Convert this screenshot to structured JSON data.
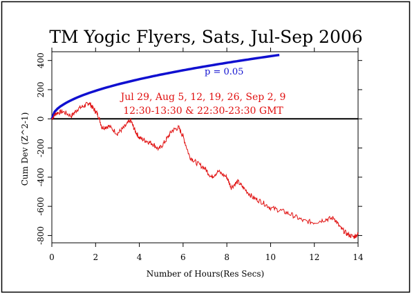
{
  "chart_data": {
    "type": "line",
    "title": "TM Yogic Flyers, Sats, Jul-Sep 2006",
    "xlabel": "Number of Hours(Res Secs)",
    "ylabel": "Cum Dev (Z^2-1)",
    "xlim": [
      0,
      14
    ],
    "ylim": [
      -850,
      460
    ],
    "xticks": [
      0,
      2,
      4,
      6,
      8,
      10,
      12,
      14
    ],
    "yticks": [
      -800,
      -600,
      -400,
      -200,
      0,
      200,
      400
    ],
    "grid": false,
    "reference_line": 0,
    "colors": {
      "data": "#e01010",
      "envelope": "#1010d0",
      "annotation": "#e01010",
      "baseline": "#000000"
    },
    "annotations": {
      "envelope_label": "p = 0.05",
      "dates": "Jul 29, Aug 5, 12, 19, 26, Sep 2, 9",
      "times": "12:30-13:30 & 22:30-23:30 GMT"
    },
    "series": [
      {
        "role": "envelope",
        "x": [
          0,
          0.1,
          0.25,
          0.5,
          1,
          1.5,
          2,
          3,
          4,
          5,
          6,
          7,
          8,
          9,
          10,
          10.4
        ],
        "values": [
          0,
          43,
          68,
          96,
          135,
          166,
          192,
          235,
          271,
          303,
          332,
          359,
          384,
          407,
          429,
          438
        ]
      },
      {
        "role": "data",
        "x": [
          0,
          0.2,
          0.5,
          0.9,
          1.2,
          1.5,
          1.7,
          1.9,
          2.1,
          2.3,
          2.6,
          3.0,
          3.3,
          3.6,
          3.8,
          4.0,
          4.3,
          4.6,
          4.9,
          5.2,
          5.5,
          5.8,
          6.0,
          6.3,
          6.6,
          7.0,
          7.3,
          7.6,
          8.0,
          8.2,
          8.5,
          8.8,
          9.2,
          9.6,
          10.0,
          10.5,
          11.0,
          11.5,
          12.0,
          12.5,
          12.9,
          13.2,
          13.5,
          13.8,
          14.0
        ],
        "values": [
          0,
          40,
          50,
          20,
          70,
          90,
          110,
          70,
          30,
          -60,
          -50,
          -100,
          -60,
          -10,
          -80,
          -130,
          -150,
          -170,
          -210,
          -150,
          -80,
          -60,
          -120,
          -260,
          -300,
          -340,
          -400,
          -360,
          -400,
          -470,
          -430,
          -480,
          -540,
          -570,
          -610,
          -630,
          -660,
          -700,
          -710,
          -690,
          -680,
          -750,
          -790,
          -810,
          -790
        ]
      }
    ]
  }
}
